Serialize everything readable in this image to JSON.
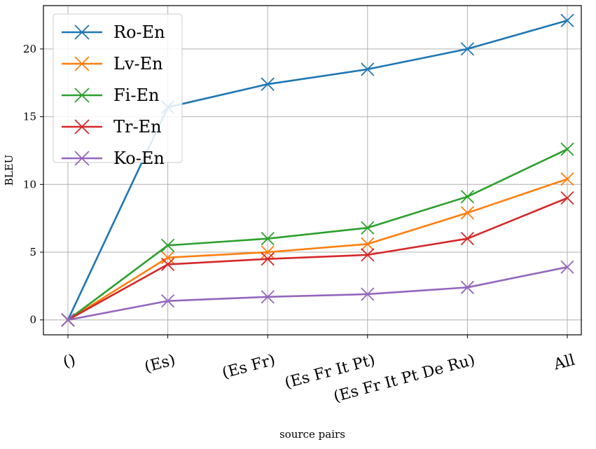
{
  "chart_data": {
    "type": "line",
    "categories": [
      "()",
      "(Es)",
      "(Es Fr)",
      "(Es Fr It Pt)",
      "(Es Fr It Pt De Ru)",
      "All"
    ],
    "series": [
      {
        "name": "Ro-En",
        "color": "#1f77b4",
        "values": [
          0,
          15.7,
          17.4,
          18.5,
          20.0,
          22.1
        ]
      },
      {
        "name": "Lv-En",
        "color": "#ff7f0e",
        "values": [
          0,
          4.6,
          5.0,
          5.6,
          7.9,
          10.4
        ]
      },
      {
        "name": "Fi-En",
        "color": "#2ca02c",
        "values": [
          0,
          5.5,
          6.0,
          6.8,
          9.1,
          12.6
        ]
      },
      {
        "name": "Tr-En",
        "color": "#d62728",
        "values": [
          0,
          4.1,
          4.5,
          4.8,
          6.0,
          9.0
        ]
      },
      {
        "name": "Ko-En",
        "color": "#9467bd",
        "values": [
          0,
          1.4,
          1.7,
          1.9,
          2.4,
          3.9
        ]
      }
    ],
    "xlabel": "source pairs",
    "ylabel": "BLEU",
    "ylim": [
      -1.1,
      23.2
    ],
    "yticks": [
      0,
      5,
      10,
      15,
      20
    ],
    "grid": true,
    "legend_position": "top-left",
    "marker": "x"
  }
}
